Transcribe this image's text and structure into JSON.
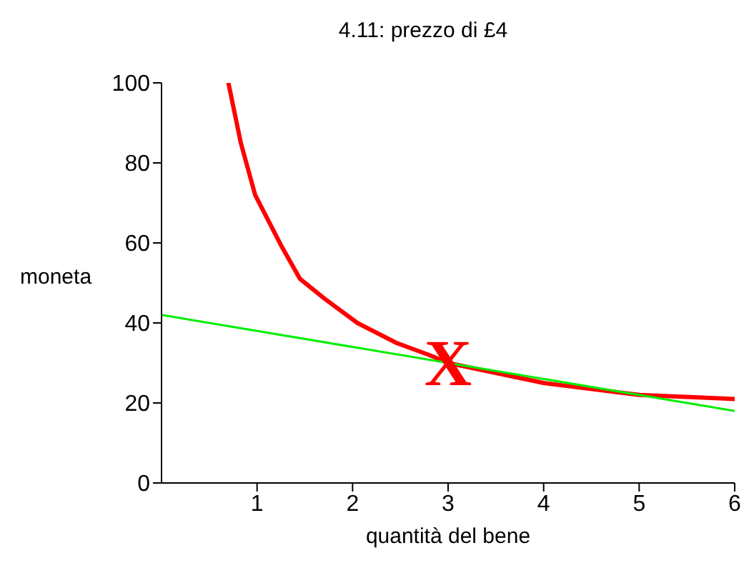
{
  "chart_data": {
    "type": "line",
    "title": "4.11: prezzo di £4",
    "xlabel": "quantità del bene",
    "ylabel": "moneta",
    "xlim": [
      0,
      6
    ],
    "xticks": [
      1,
      2,
      3,
      4,
      5,
      6
    ],
    "ylim": [
      0,
      100
    ],
    "yticks": [
      0,
      20,
      40,
      60,
      80,
      100
    ],
    "marker": "none",
    "series": [
      {
        "color": "#ff0000",
        "x": [
          0.7,
          0.83,
          0.98,
          1.26,
          1.45,
          1.71,
          2.05,
          2.46,
          2.8,
          3,
          3.5,
          4,
          5,
          6
        ],
        "values": [
          100,
          85,
          72,
          59,
          51,
          46,
          40,
          35,
          32,
          30,
          27.5,
          25,
          22,
          21
        ]
      },
      {
        "color": "#00ee00",
        "x": [
          0,
          6
        ],
        "values": [
          42,
          18
        ]
      }
    ],
    "annotations": [
      {
        "text": "X",
        "x": 3,
        "y": 30
      }
    ]
  }
}
